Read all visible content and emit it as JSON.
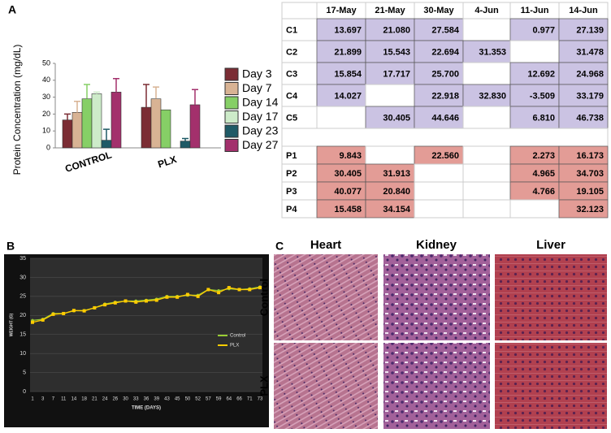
{
  "panel_labels": [
    "A",
    "B",
    "C"
  ],
  "chart_data": [
    {
      "type": "bar",
      "ylabel": "Protein Concentration  (mg/dL)",
      "categories": [
        "CONTROL",
        "PLX"
      ],
      "series": [
        {
          "name": "Day 3",
          "color": "#7b2d34",
          "values": [
            16.5,
            24
          ],
          "errors": [
            3.5,
            13.5
          ]
        },
        {
          "name": "Day 7",
          "color": "#d8b394",
          "values": [
            21,
            29
          ],
          "errors": [
            6.5,
            7
          ]
        },
        {
          "name": "Day 14",
          "color": "#86cf66",
          "values": [
            29,
            22.5
          ],
          "errors": [
            8.5,
            null
          ]
        },
        {
          "name": "Day 17",
          "color": "#cdebc9",
          "values": [
            32,
            null
          ],
          "errors": [
            1,
            null
          ]
        },
        {
          "name": "Day 23",
          "color": "#1f5a66",
          "values": [
            4.5,
            4
          ],
          "errors": [
            6.5,
            1.5
          ]
        },
        {
          "name": "Day 27",
          "color": "#a3306c",
          "values": [
            33,
            25.5
          ],
          "errors": [
            8,
            9
          ]
        }
      ],
      "ylim": [
        0,
        50
      ],
      "yticks": [
        0,
        10,
        20,
        30,
        40,
        50
      ]
    },
    {
      "type": "line",
      "xlabel": "TIME (DAYS)",
      "ylabel": "WEIGHT (G)",
      "categories": [
        "1",
        "3",
        "7",
        "11",
        "14",
        "18",
        "21",
        "24",
        "26",
        "30",
        "33",
        "36",
        "39",
        "43",
        "45",
        "50",
        "52",
        "57",
        "59",
        "64",
        "66",
        "71",
        "73"
      ],
      "series": [
        {
          "name": "Control",
          "color": "#99cc33",
          "values": [
            18.7,
            19,
            20.5,
            20.5,
            21.2,
            21.3,
            22,
            23,
            23.5,
            23.8,
            23.8,
            24,
            24.3,
            25,
            25,
            25.3,
            25.3,
            26.8,
            26.5,
            27,
            26.8,
            27,
            27.5
          ]
        },
        {
          "name": "PLX",
          "color": "#ffcc00",
          "values": [
            18.2,
            18.8,
            20.3,
            20.5,
            21.3,
            21.2,
            22,
            22.8,
            23.3,
            23.8,
            23.5,
            23.8,
            24,
            24.8,
            24.8,
            25.5,
            25,
            26.8,
            26,
            27.3,
            26.8,
            26.8,
            27.3
          ]
        }
      ],
      "ylim": [
        0,
        35
      ],
      "yticks": [
        0,
        5,
        10,
        15,
        20,
        25,
        30,
        35
      ],
      "grid": true
    }
  ],
  "table": {
    "columns": [
      "17-May",
      "21-May",
      "30-May",
      "4-Jun",
      "11-Jun",
      "14-Jun"
    ],
    "groups": [
      {
        "color": "#cbc3e3",
        "rows": [
          {
            "label": "C1",
            "cells": [
              "13.697",
              "21.080",
              "27.584",
              null,
              "0.977",
              "27.139"
            ]
          },
          {
            "label": "C2",
            "cells": [
              "21.899",
              "15.543",
              "22.694",
              "31.353",
              null,
              "31.478"
            ]
          },
          {
            "label": "C3",
            "cells": [
              "15.854",
              "17.717",
              "25.700",
              null,
              "12.692",
              "24.968"
            ]
          },
          {
            "label": "C4",
            "cells": [
              "14.027",
              null,
              "22.918",
              "32.830",
              "-3.509",
              "33.179"
            ]
          },
          {
            "label": "C5",
            "cells": [
              null,
              "30.405",
              "44.646",
              null,
              "6.810",
              "46.738"
            ]
          }
        ]
      },
      {
        "color": "#e39c96",
        "rows": [
          {
            "label": "P1",
            "cells": [
              "9.843",
              null,
              "22.560",
              null,
              "2.273",
              "16.173"
            ]
          },
          {
            "label": "P2",
            "cells": [
              "30.405",
              "31.913",
              null,
              null,
              "4.965",
              "34.703"
            ]
          },
          {
            "label": "P3",
            "cells": [
              "40.077",
              "20.840",
              null,
              null,
              "4.766",
              "19.105"
            ]
          },
          {
            "label": "P4",
            "cells": [
              "15.458",
              "34.154",
              null,
              null,
              null,
              "32.123"
            ]
          }
        ]
      }
    ]
  },
  "histology": {
    "columns": [
      "Heart",
      "Kidney",
      "Liver"
    ],
    "rows": [
      "Control",
      "PLX"
    ]
  }
}
